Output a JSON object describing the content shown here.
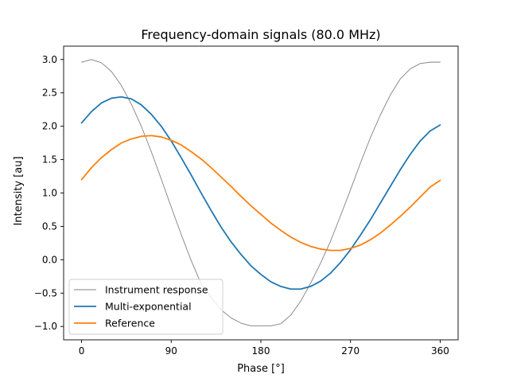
{
  "chart_data": {
    "type": "line",
    "title": "Frequency-domain signals (80.0 MHz)",
    "xlabel": "Phase [°]",
    "ylabel": "Intensity [au]",
    "xlim": [
      -18,
      378
    ],
    "ylim": [
      -1.2,
      3.2
    ],
    "x_ticks": [
      0,
      90,
      180,
      270,
      360
    ],
    "x_tick_labels": [
      "0",
      "90",
      "180",
      "270",
      "360"
    ],
    "y_ticks": [
      -1.0,
      -0.5,
      0.0,
      0.5,
      1.0,
      1.5,
      2.0,
      2.5,
      3.0
    ],
    "y_tick_labels": [
      "−1.0",
      "−0.5",
      "0.0",
      "0.5",
      "1.0",
      "1.5",
      "2.0",
      "2.5",
      "3.0"
    ],
    "grid": false,
    "legend_position": "lower-left",
    "x": [
      0,
      10,
      20,
      30,
      40,
      50,
      60,
      70,
      80,
      90,
      100,
      110,
      120,
      130,
      140,
      150,
      160,
      170,
      180,
      190,
      200,
      210,
      220,
      230,
      240,
      250,
      260,
      270,
      280,
      290,
      300,
      310,
      320,
      330,
      340,
      350,
      360
    ],
    "series": [
      {
        "name": "Instrument response",
        "color": "#808080",
        "values": [
          2.96,
          3.0,
          2.95,
          2.82,
          2.61,
          2.33,
          2.0,
          1.62,
          1.21,
          0.79,
          0.38,
          -0.01,
          -0.36,
          -0.56,
          -0.75,
          -0.87,
          -0.95,
          -0.99,
          -0.99,
          -0.99,
          -0.96,
          -0.83,
          -0.62,
          -0.35,
          -0.05,
          0.28,
          0.66,
          1.05,
          1.45,
          1.83,
          2.17,
          2.47,
          2.71,
          2.86,
          2.94,
          2.96,
          2.96
        ]
      },
      {
        "name": "Multi-exponential",
        "color": "#1f77b4",
        "values": [
          2.05,
          2.22,
          2.35,
          2.42,
          2.44,
          2.41,
          2.32,
          2.18,
          2.0,
          1.78,
          1.53,
          1.27,
          1.0,
          0.74,
          0.49,
          0.27,
          0.08,
          -0.09,
          -0.22,
          -0.33,
          -0.4,
          -0.44,
          -0.44,
          -0.4,
          -0.32,
          -0.2,
          -0.04,
          0.15,
          0.37,
          0.6,
          0.85,
          1.1,
          1.35,
          1.58,
          1.78,
          1.93,
          2.02
        ]
      },
      {
        "name": "Reference",
        "color": "#ff7f0e",
        "values": [
          1.2,
          1.38,
          1.53,
          1.65,
          1.75,
          1.81,
          1.85,
          1.86,
          1.84,
          1.79,
          1.72,
          1.62,
          1.51,
          1.38,
          1.24,
          1.1,
          0.95,
          0.81,
          0.68,
          0.55,
          0.44,
          0.34,
          0.26,
          0.2,
          0.16,
          0.14,
          0.14,
          0.17,
          0.22,
          0.3,
          0.4,
          0.52,
          0.65,
          0.79,
          0.94,
          1.09,
          1.19
        ]
      }
    ]
  }
}
